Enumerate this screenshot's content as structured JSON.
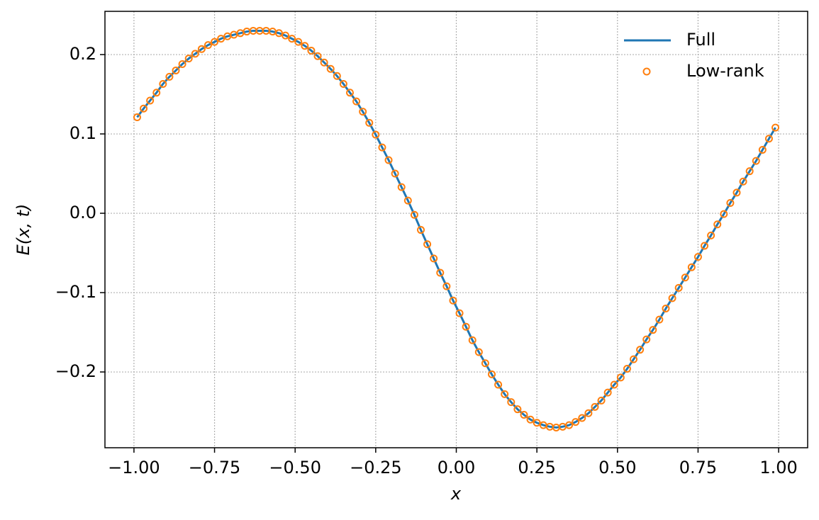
{
  "chart_data": {
    "type": "line",
    "xlabel": "x",
    "ylabel": "E(x, t)",
    "xlim": [
      -1.09,
      1.09
    ],
    "ylim": [
      -0.2955,
      0.2545
    ],
    "xticks": [
      {
        "value": -1,
        "label": "−1.00"
      },
      {
        "value": -0.75,
        "label": "−0.75"
      },
      {
        "value": -0.5,
        "label": "−0.50"
      },
      {
        "value": -0.25,
        "label": "−0.25"
      },
      {
        "value": 0,
        "label": "0.00"
      },
      0.25,
      {
        "value": 0.5,
        "label": "0.50"
      },
      0.75,
      {
        "value": 1,
        "label": "1.00"
      }
    ],
    "yticks": [
      {
        "value": -0.2,
        "label": "−0.2"
      },
      {
        "value": -0.1,
        "label": "−0.1"
      },
      {
        "value": 0,
        "label": "0.0"
      },
      0.1,
      0.2
    ],
    "grid": true,
    "legend": "upper right",
    "x": [
      -0.99,
      -0.97,
      -0.95,
      -0.93,
      -0.91,
      -0.89,
      -0.87,
      -0.85,
      -0.83,
      -0.81,
      -0.79,
      -0.77,
      -0.75,
      -0.73,
      -0.71,
      -0.69,
      -0.67,
      -0.65,
      -0.63,
      -0.61,
      -0.59,
      -0.57,
      -0.55,
      -0.53,
      -0.51,
      -0.49,
      -0.47,
      -0.45,
      -0.43,
      -0.41,
      -0.39,
      -0.37,
      -0.35,
      -0.33,
      -0.31,
      -0.29,
      -0.27,
      -0.25,
      -0.23,
      -0.21,
      -0.19,
      -0.17,
      -0.15,
      -0.13,
      -0.11,
      -0.09,
      -0.07,
      -0.05,
      -0.03,
      -0.01,
      0.01,
      0.03,
      0.05,
      0.07,
      0.09,
      0.11,
      0.13,
      0.15,
      0.17,
      0.19,
      0.21,
      0.23,
      0.25,
      0.27,
      0.29,
      0.31,
      0.33,
      0.35,
      0.37,
      0.39,
      0.41,
      0.43,
      0.45,
      0.47,
      0.49,
      0.51,
      0.53,
      0.55,
      0.57,
      0.59,
      0.61,
      0.63,
      0.65,
      0.67,
      0.69,
      0.71,
      0.73,
      0.75,
      0.77,
      0.79,
      0.81,
      0.83,
      0.85,
      0.87,
      0.89,
      0.91,
      0.93,
      0.95,
      0.97,
      0.99
    ],
    "series": [
      {
        "name": "Full",
        "color": "#1f77b4",
        "style": "line",
        "values": [
          0.121,
          0.132,
          0.142,
          0.152,
          0.163,
          0.172,
          0.18,
          0.188,
          0.195,
          0.201,
          0.207,
          0.212,
          0.216,
          0.22,
          0.223,
          0.225,
          0.227,
          0.229,
          0.23,
          0.23,
          0.23,
          0.229,
          0.227,
          0.224,
          0.22,
          0.216,
          0.211,
          0.205,
          0.198,
          0.19,
          0.182,
          0.173,
          0.163,
          0.152,
          0.141,
          0.128,
          0.114,
          0.099,
          0.083,
          0.067,
          0.05,
          0.033,
          0.016,
          -0.002,
          -0.021,
          -0.039,
          -0.057,
          -0.075,
          -0.092,
          -0.11,
          -0.126,
          -0.143,
          -0.16,
          -0.175,
          -0.189,
          -0.203,
          -0.216,
          -0.228,
          -0.238,
          -0.247,
          -0.254,
          -0.26,
          -0.264,
          -0.267,
          -0.269,
          -0.27,
          -0.269,
          -0.267,
          -0.263,
          -0.258,
          -0.252,
          -0.244,
          -0.236,
          -0.226,
          -0.216,
          -0.207,
          -0.196,
          -0.184,
          -0.172,
          -0.159,
          -0.147,
          -0.134,
          -0.12,
          -0.107,
          -0.094,
          -0.081,
          -0.068,
          -0.055,
          -0.041,
          -0.028,
          -0.014,
          -0.001,
          0.013,
          0.026,
          0.04,
          0.053,
          0.066,
          0.08,
          0.094,
          0.108
        ]
      },
      {
        "name": "Low-rank",
        "color": "#ff7f0e",
        "style": "markers",
        "values": [
          0.121,
          0.132,
          0.142,
          0.152,
          0.163,
          0.172,
          0.18,
          0.188,
          0.195,
          0.201,
          0.207,
          0.212,
          0.216,
          0.22,
          0.223,
          0.225,
          0.227,
          0.229,
          0.23,
          0.23,
          0.23,
          0.229,
          0.227,
          0.224,
          0.22,
          0.216,
          0.211,
          0.205,
          0.198,
          0.19,
          0.182,
          0.173,
          0.163,
          0.152,
          0.141,
          0.128,
          0.114,
          0.099,
          0.083,
          0.067,
          0.05,
          0.033,
          0.016,
          -0.002,
          -0.021,
          -0.039,
          -0.057,
          -0.075,
          -0.092,
          -0.11,
          -0.126,
          -0.143,
          -0.16,
          -0.175,
          -0.189,
          -0.203,
          -0.216,
          -0.228,
          -0.238,
          -0.247,
          -0.254,
          -0.26,
          -0.264,
          -0.267,
          -0.269,
          -0.27,
          -0.269,
          -0.267,
          -0.263,
          -0.258,
          -0.252,
          -0.244,
          -0.236,
          -0.226,
          -0.216,
          -0.207,
          -0.196,
          -0.184,
          -0.172,
          -0.159,
          -0.147,
          -0.134,
          -0.12,
          -0.107,
          -0.094,
          -0.081,
          -0.068,
          -0.055,
          -0.041,
          -0.028,
          -0.014,
          -0.001,
          0.013,
          0.026,
          0.04,
          0.053,
          0.066,
          0.08,
          0.094,
          0.108
        ]
      }
    ]
  }
}
